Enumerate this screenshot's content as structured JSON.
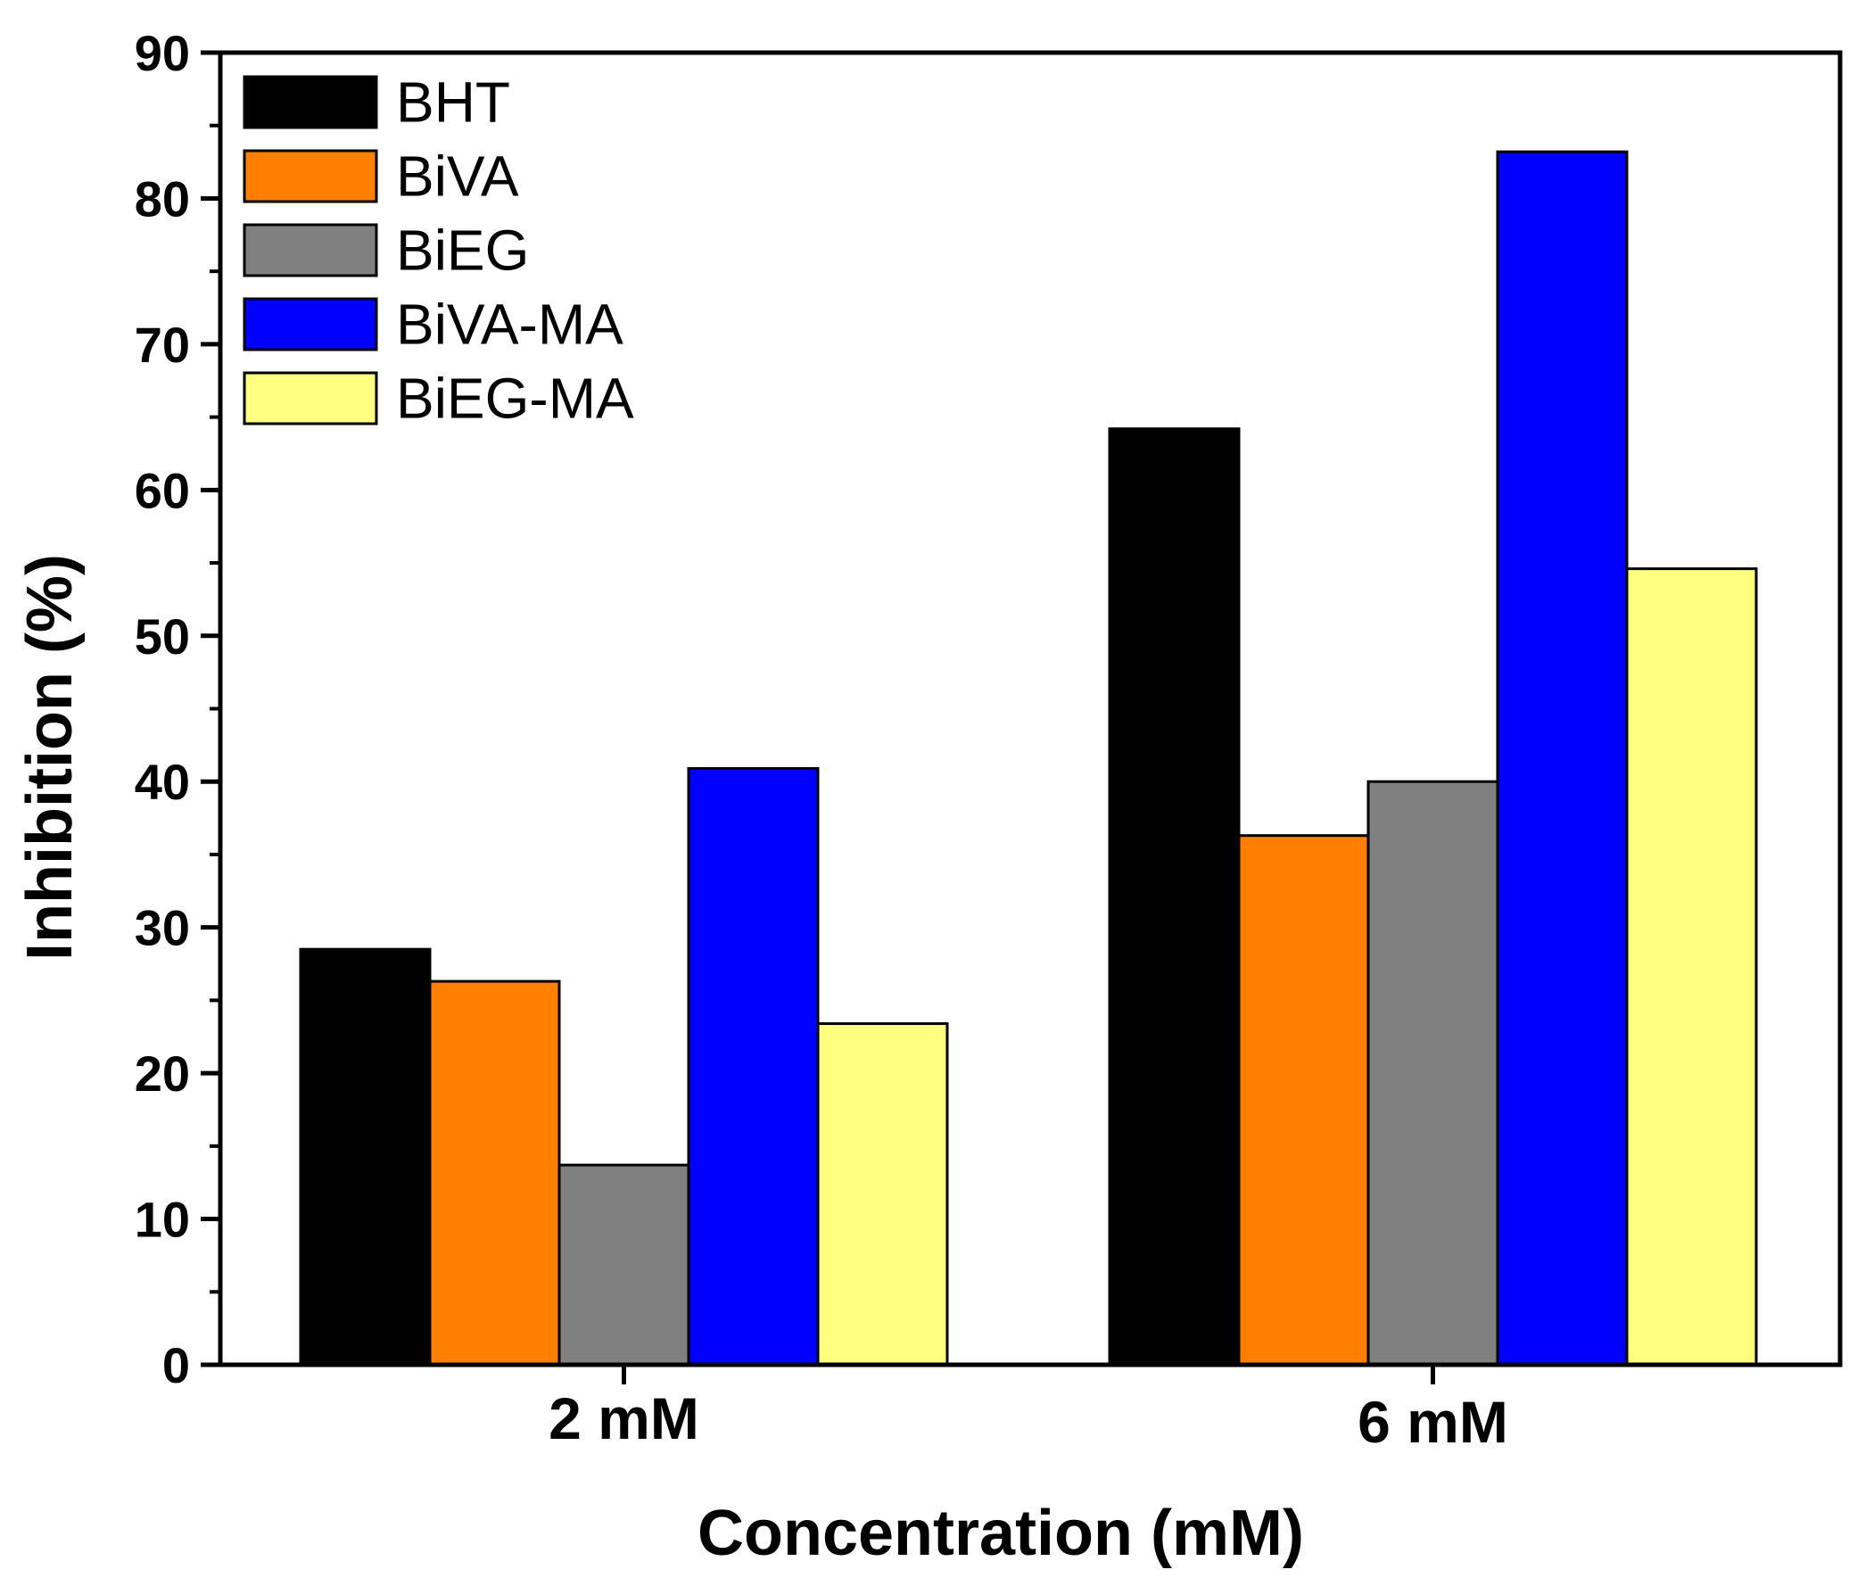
{
  "chart_data": {
    "type": "bar",
    "title": "",
    "xlabel": "Concentration (mM)",
    "ylabel": "Inhibition (%)",
    "ylim": [
      0,
      90
    ],
    "yticks": [
      0,
      10,
      20,
      30,
      40,
      50,
      60,
      70,
      80,
      90
    ],
    "categories": [
      "2 mM",
      "6 mM"
    ],
    "series": [
      {
        "name": "BHT",
        "color": "#000000",
        "values": [
          28.5,
          64.2
        ]
      },
      {
        "name": "BiVA",
        "color": "#ff7f00",
        "values": [
          26.3,
          36.3
        ]
      },
      {
        "name": "BiEG",
        "color": "#808080",
        "values": [
          13.7,
          40.0
        ]
      },
      {
        "name": "BiVA-MA",
        "color": "#0000ff",
        "values": [
          40.9,
          83.2
        ]
      },
      {
        "name": "BiEG-MA",
        "color": "#ffff80",
        "values": [
          23.4,
          54.6
        ]
      }
    ],
    "legend": "top-left",
    "grid": false
  }
}
